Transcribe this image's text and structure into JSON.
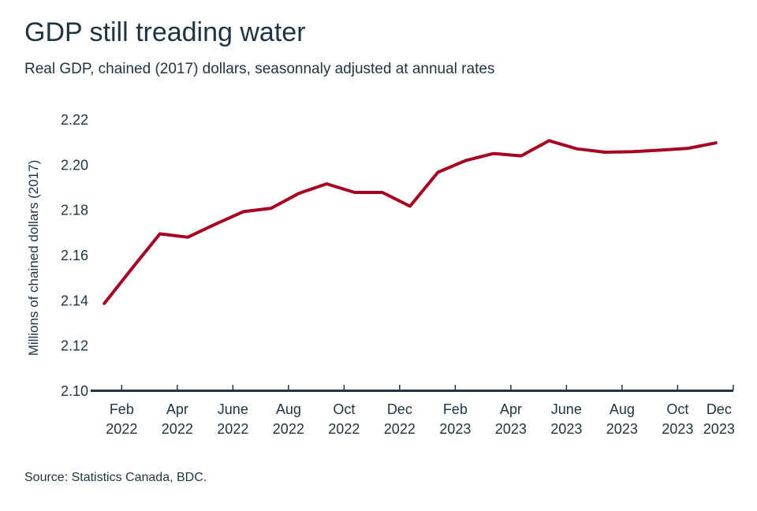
{
  "chart_data": {
    "type": "line",
    "title": "GDP still treading water",
    "subtitle": "Real GDP, chained (2017) dollars, seasonnaly adjusted at annual rates",
    "ylabel": "Millions of chained dollars (2017)",
    "xlabel": "",
    "ylim": [
      2.1,
      2.22
    ],
    "yticks": [
      "2.10",
      "2.12",
      "2.14",
      "2.16",
      "2.18",
      "2.20",
      "2.22"
    ],
    "xticks": [
      {
        "month": "Feb",
        "year": "2022"
      },
      {
        "month": "Apr",
        "year": "2022"
      },
      {
        "month": "June",
        "year": "2022"
      },
      {
        "month": "Aug",
        "year": "2022"
      },
      {
        "month": "Oct",
        "year": "2022"
      },
      {
        "month": "Dec",
        "year": "2022"
      },
      {
        "month": "Feb",
        "year": "2023"
      },
      {
        "month": "Apr",
        "year": "2023"
      },
      {
        "month": "June",
        "year": "2023"
      },
      {
        "month": "Aug",
        "year": "2023"
      },
      {
        "month": "Oct",
        "year": "2023"
      },
      {
        "month": "Dec",
        "year": "2023"
      }
    ],
    "grid": false,
    "series": [
      {
        "color": "#a50021",
        "x": [
          "2022-01",
          "2022-02",
          "2022-03",
          "2022-04",
          "2022-05",
          "2022-06",
          "2022-07",
          "2022-08",
          "2022-09",
          "2022-10",
          "2022-11",
          "2022-12",
          "2023-01",
          "2023-02",
          "2023-03",
          "2023-04",
          "2023-05",
          "2023-06",
          "2023-07",
          "2023-08",
          "2023-09",
          "2023-10",
          "2023-11"
        ],
        "values": [
          2.1388,
          2.1544,
          2.1696,
          2.1681,
          2.1739,
          2.1794,
          2.1809,
          2.1875,
          2.1917,
          2.1879,
          2.1879,
          2.1818,
          2.1968,
          2.202,
          2.2051,
          2.2041,
          2.2108,
          2.2072,
          2.2057,
          2.2059,
          2.2066,
          2.2074,
          2.2098
        ]
      }
    ]
  },
  "source": "Source: Statistics Canada, BDC."
}
